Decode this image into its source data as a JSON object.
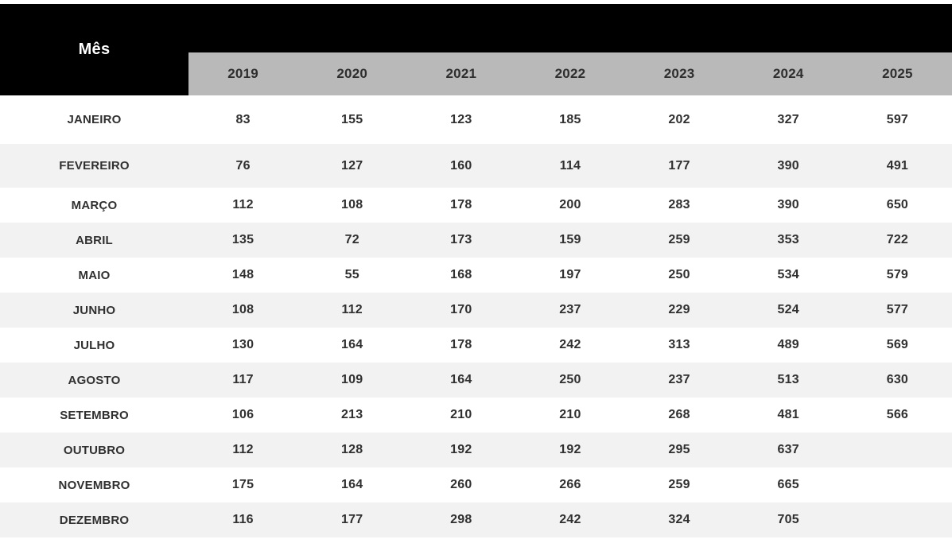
{
  "colors": {
    "header_bg": "#000000",
    "header_text": "#ffffff",
    "year_band_bg": "#b9b9b9",
    "year_text": "#2e2e2e",
    "row_alt_bg": "#f2f2f2",
    "row_bg": "#ffffff",
    "cell_text": "#303030"
  },
  "chart_data": {
    "type": "table",
    "title": "",
    "corner_label": "Mês",
    "columns": [
      "2019",
      "2020",
      "2021",
      "2022",
      "2023",
      "2024",
      "2025"
    ],
    "rows": [
      {
        "month": "JANEIRO",
        "values": [
          83,
          155,
          123,
          185,
          202,
          327,
          597
        ]
      },
      {
        "month": "FEVEREIRO",
        "values": [
          76,
          127,
          160,
          114,
          177,
          390,
          491
        ]
      },
      {
        "month": "MARÇO",
        "values": [
          112,
          108,
          178,
          200,
          283,
          390,
          650
        ]
      },
      {
        "month": "ABRIL",
        "values": [
          135,
          72,
          173,
          159,
          259,
          353,
          722
        ]
      },
      {
        "month": "MAIO",
        "values": [
          148,
          55,
          168,
          197,
          250,
          534,
          579
        ]
      },
      {
        "month": "JUNHO",
        "values": [
          108,
          112,
          170,
          237,
          229,
          524,
          577
        ]
      },
      {
        "month": "JULHO",
        "values": [
          130,
          164,
          178,
          242,
          313,
          489,
          569
        ]
      },
      {
        "month": "AGOSTO",
        "values": [
          117,
          109,
          164,
          250,
          237,
          513,
          630
        ]
      },
      {
        "month": "SETEMBRO",
        "values": [
          106,
          213,
          210,
          210,
          268,
          481,
          566
        ]
      },
      {
        "month": "OUTUBRO",
        "values": [
          112,
          128,
          192,
          192,
          295,
          637,
          null
        ]
      },
      {
        "month": "NOVEMBRO",
        "values": [
          175,
          164,
          260,
          266,
          259,
          665,
          null
        ]
      },
      {
        "month": "DEZEMBRO",
        "values": [
          116,
          177,
          298,
          242,
          324,
          705,
          null
        ]
      }
    ]
  }
}
